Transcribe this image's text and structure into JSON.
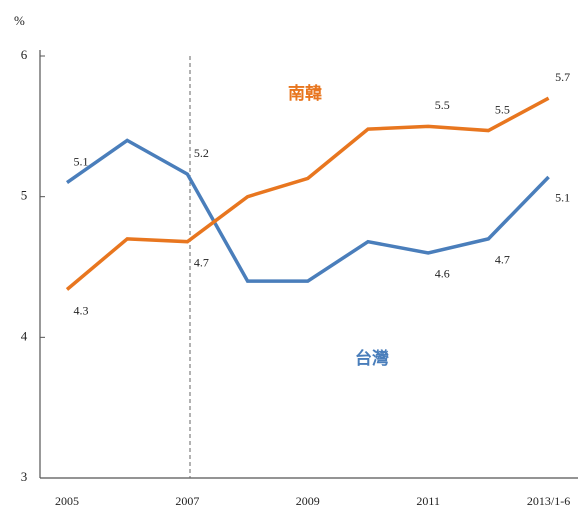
{
  "chart_data": {
    "type": "line",
    "ylabel": "%",
    "categories": [
      "2005",
      null,
      "2007",
      null,
      "2009",
      null,
      "2011",
      null,
      "2013/1-6"
    ],
    "series": [
      {
        "name": "台灣",
        "color": "#4a7ebb",
        "values": [
          5.1,
          5.4,
          5.16,
          4.4,
          4.4,
          4.68,
          4.6,
          4.7,
          5.14
        ],
        "value_labels": [
          "5.1",
          null,
          "5.2",
          null,
          null,
          null,
          "4.6",
          "4.7",
          "5.1"
        ]
      },
      {
        "name": "南韓",
        "color": "#e8761f",
        "values": [
          4.34,
          4.7,
          4.68,
          5.0,
          5.13,
          5.48,
          5.5,
          5.47,
          5.7
        ],
        "value_labels": [
          "4.3",
          null,
          "4.7",
          null,
          null,
          null,
          "5.5",
          "5.5",
          "5.7"
        ]
      }
    ],
    "ylim": [
      3,
      6
    ],
    "yticks": [
      3,
      4,
      5,
      6
    ]
  }
}
